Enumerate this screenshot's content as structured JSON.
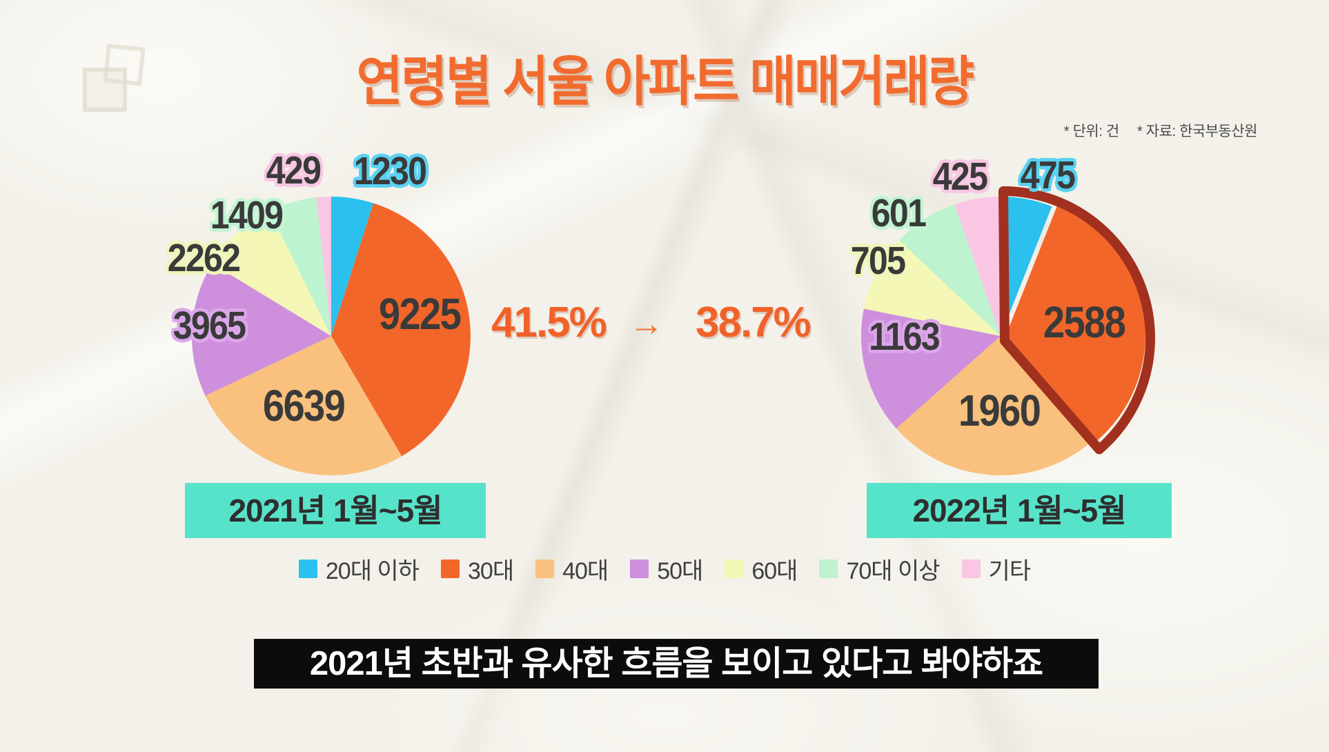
{
  "title": "연령별 서울 아파트 매매거래량",
  "notes": {
    "unit": "* 단위: 건",
    "source": "* 자료: 한국부동산원"
  },
  "callout": {
    "left_pct": "41.5%",
    "arrow": "→",
    "right_pct": "38.7%"
  },
  "caption": "2021년 초반과 유사한 흐름을 보이고 있다고 봐야하죠",
  "legend": {
    "items": [
      {
        "label": "20대 이하",
        "color": "#2bc0ee"
      },
      {
        "label": "30대",
        "color": "#f2662a"
      },
      {
        "label": "40대",
        "color": "#f9c17d"
      },
      {
        "label": "50대",
        "color": "#ce8fdd"
      },
      {
        "label": "60대",
        "color": "#f4f7b6"
      },
      {
        "label": "70대 이상",
        "color": "#bdf3cf"
      },
      {
        "label": "기타",
        "color": "#f9c6e4"
      }
    ]
  },
  "chart_data": [
    {
      "type": "pie",
      "title": "2021년 1월~5월",
      "categories": [
        "20대 이하",
        "30대",
        "40대",
        "50대",
        "60대",
        "70대 이상",
        "기타"
      ],
      "values": [
        1230,
        9225,
        6639,
        3965,
        2262,
        1409,
        429
      ],
      "colors": [
        "#2bc0ee",
        "#f2662a",
        "#f9c17d",
        "#ce8fdd",
        "#f4f7b6",
        "#bdf3cf",
        "#f9c6e4"
      ],
      "start_angle_deg": 0,
      "direction": "clockwise",
      "annotation_pct": "41.5%"
    },
    {
      "type": "pie",
      "title": "2022년 1월~5월",
      "categories": [
        "20대 이하",
        "30대",
        "40대",
        "50대",
        "60대",
        "70대 이상",
        "기타"
      ],
      "values": [
        475,
        2588,
        1960,
        1163,
        705,
        601,
        425
      ],
      "colors": [
        "#2bc0ee",
        "#f2662a",
        "#f9c17d",
        "#ce8fdd",
        "#f4f7b6",
        "#bdf3cf",
        "#f9c6e4"
      ],
      "start_angle_deg": 0,
      "direction": "clockwise",
      "annotation_pct": "38.7%",
      "highlight": {
        "slice_indices": [
          0,
          1
        ],
        "exploded_index": 1,
        "outline_color": "#a2301f"
      }
    }
  ]
}
